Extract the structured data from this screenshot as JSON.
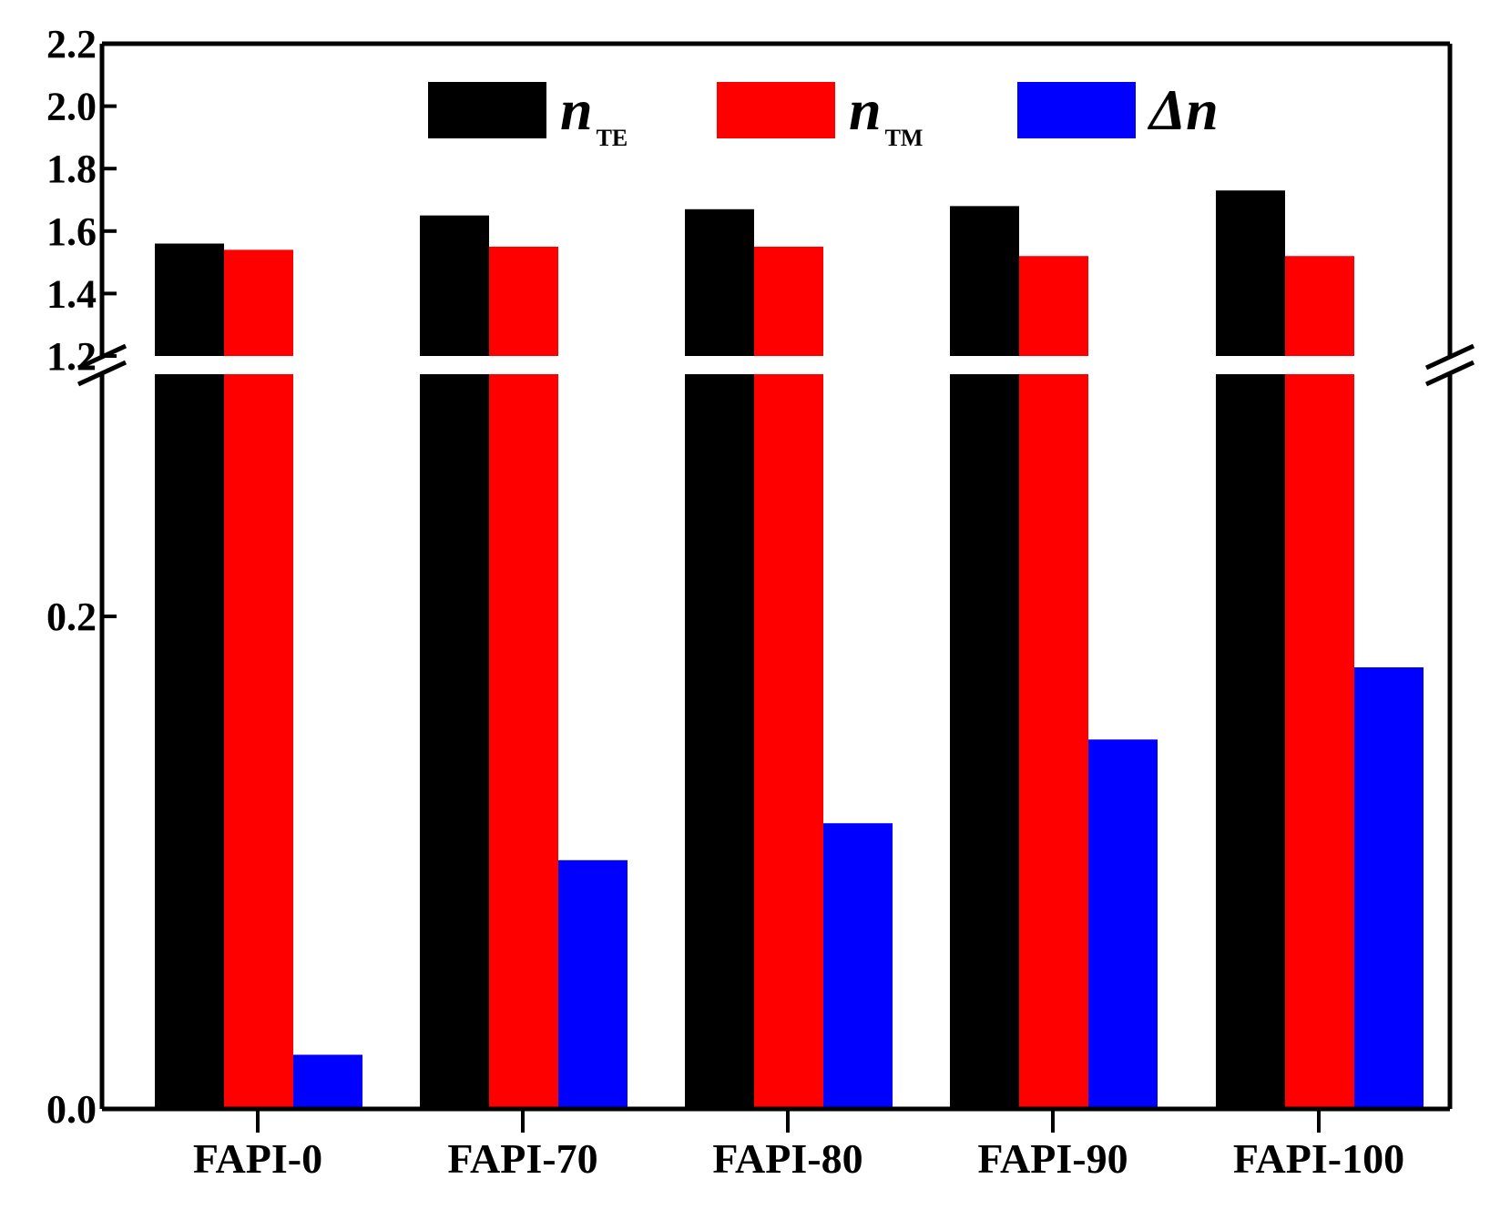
{
  "chart_data": {
    "type": "bar",
    "title": "",
    "xlabel": "",
    "ylabel": "",
    "categories": [
      "FAPI-0",
      "FAPI-70",
      "FAPI-80",
      "FAPI-90",
      "FAPI-100"
    ],
    "series": [
      {
        "name": "n_TE",
        "legend_main": "n",
        "legend_sub": "TE",
        "color": "#000000",
        "values": [
          1.56,
          1.65,
          1.67,
          1.68,
          1.73
        ]
      },
      {
        "name": "n_TM",
        "legend_main": "n",
        "legend_sub": "TM",
        "color": "#ff0000",
        "values": [
          1.54,
          1.55,
          1.55,
          1.52,
          1.52
        ]
      },
      {
        "name": "Δn",
        "legend_main": "Δn",
        "legend_sub": "",
        "color": "#0000ff",
        "values": [
          0.022,
          0.101,
          0.116,
          0.15,
          0.203
        ]
      }
    ],
    "axis_break": true,
    "ylim_lower": [
      0,
      0.2
    ],
    "ylim_upper": [
      1.2,
      2.2
    ],
    "yticks_lower": [
      "0.0",
      "0.2"
    ],
    "yticks_upper": [
      "1.2",
      "1.4",
      "1.6",
      "1.8",
      "2.0",
      "2.2"
    ],
    "legend_position": "top-center",
    "grid": false
  }
}
